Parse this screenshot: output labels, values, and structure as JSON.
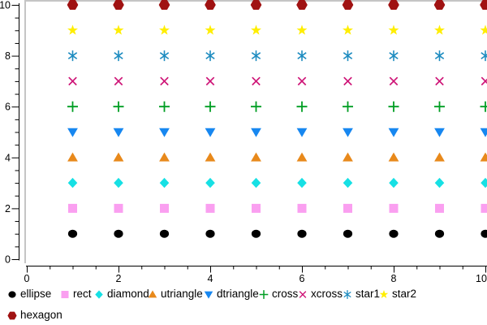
{
  "chart_data": {
    "type": "scatter",
    "title": "",
    "xlabel": "",
    "ylabel": "",
    "xlim": [
      0,
      10
    ],
    "ylim": [
      0,
      10
    ],
    "x_major_ticks": [
      0,
      2,
      4,
      6,
      8,
      10
    ],
    "y_major_ticks": [
      0,
      2,
      4,
      6,
      8,
      10
    ],
    "x_tick_labels": [
      "0",
      "2",
      "4",
      "6",
      "8",
      "10"
    ],
    "y_tick_labels": [
      "0",
      "2",
      "4",
      "6",
      "8",
      "10"
    ],
    "minor_tick_step": 0.5,
    "grid": false,
    "legend_position": "bottom",
    "frame_color": "#c5c5c5",
    "axis_color": "#000000",
    "x": [
      1,
      2,
      3,
      4,
      5,
      6,
      7,
      8,
      9,
      10
    ],
    "series": [
      {
        "name": "ellipse",
        "marker": "ellipse",
        "color": "#000000",
        "y": [
          1,
          1,
          1,
          1,
          1,
          1,
          1,
          1,
          1,
          1
        ]
      },
      {
        "name": "rect",
        "marker": "rect",
        "color": "#fa9ff0",
        "y": [
          2,
          2,
          2,
          2,
          2,
          2,
          2,
          2,
          2,
          2
        ]
      },
      {
        "name": "diamond",
        "marker": "diamond",
        "color": "#16e0e4",
        "y": [
          3,
          3,
          3,
          3,
          3,
          3,
          3,
          3,
          3,
          3
        ]
      },
      {
        "name": "utriangle",
        "marker": "utriangle",
        "color": "#e8891b",
        "y": [
          4,
          4,
          4,
          4,
          4,
          4,
          4,
          4,
          4,
          4
        ]
      },
      {
        "name": "dtriangle",
        "marker": "dtriangle",
        "color": "#1787f0",
        "y": [
          5,
          5,
          5,
          5,
          5,
          5,
          5,
          5,
          5,
          5
        ]
      },
      {
        "name": "cross",
        "marker": "cross",
        "color": "#009e23",
        "y": [
          6,
          6,
          6,
          6,
          6,
          6,
          6,
          6,
          6,
          6
        ]
      },
      {
        "name": "xcross",
        "marker": "xcross",
        "color": "#ce1577",
        "y": [
          7,
          7,
          7,
          7,
          7,
          7,
          7,
          7,
          7,
          7
        ]
      },
      {
        "name": "star1",
        "marker": "star1",
        "color": "#1e8cc0",
        "y": [
          8,
          8,
          8,
          8,
          8,
          8,
          8,
          8,
          8,
          8
        ]
      },
      {
        "name": "star2",
        "marker": "star2",
        "color": "#ffee00",
        "y": [
          9,
          9,
          9,
          9,
          9,
          9,
          9,
          9,
          9,
          9
        ]
      },
      {
        "name": "hexagon",
        "marker": "hexagon",
        "color": "#a01212",
        "y": [
          10,
          10,
          10,
          10,
          10,
          10,
          10,
          10,
          10,
          10
        ]
      }
    ]
  },
  "legend": {
    "row1_labels": [
      "ellipse",
      "rect",
      "diamond",
      "utriangle",
      "dtriangle",
      "cross",
      "xcross",
      "star1",
      "star2"
    ],
    "row2_labels": [
      "hexagon"
    ]
  }
}
